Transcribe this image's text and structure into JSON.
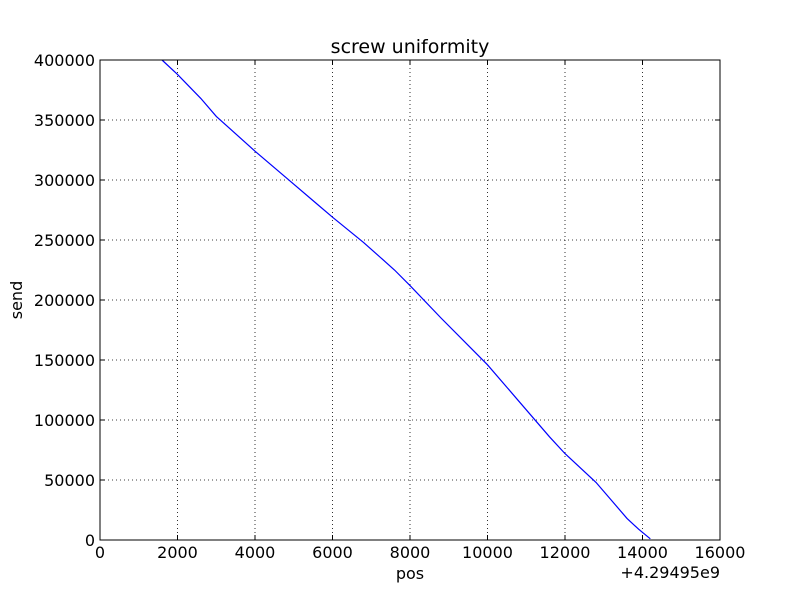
{
  "chart_data": {
    "type": "line",
    "title": "screw uniformity",
    "xlabel": "pos",
    "ylabel": "send",
    "x_offset_label": "+4.29495e9",
    "xlim": [
      0,
      16000
    ],
    "ylim": [
      0,
      400000
    ],
    "xticks": [
      "0",
      "2000",
      "4000",
      "6000",
      "8000",
      "10000",
      "12000",
      "14000",
      "16000"
    ],
    "yticks": [
      "0",
      "50000",
      "100000",
      "150000",
      "200000",
      "250000",
      "300000",
      "350000",
      "400000"
    ],
    "grid": true,
    "series_color": "#0000ff",
    "series": [
      {
        "x": [
          1600,
          2000,
          2600,
          3000,
          4000,
          4800,
          5600,
          6000,
          6800,
          7600,
          8000,
          8800,
          9600,
          10000,
          10800,
          11600,
          12000,
          12800,
          13200,
          13600,
          13900,
          14200
        ],
        "values": [
          400000,
          388000,
          368000,
          353000,
          324000,
          302000,
          280000,
          269000,
          248000,
          225000,
          212000,
          185000,
          159000,
          146000,
          116000,
          86000,
          72000,
          48000,
          33000,
          18000,
          9000,
          1000
        ]
      }
    ]
  }
}
